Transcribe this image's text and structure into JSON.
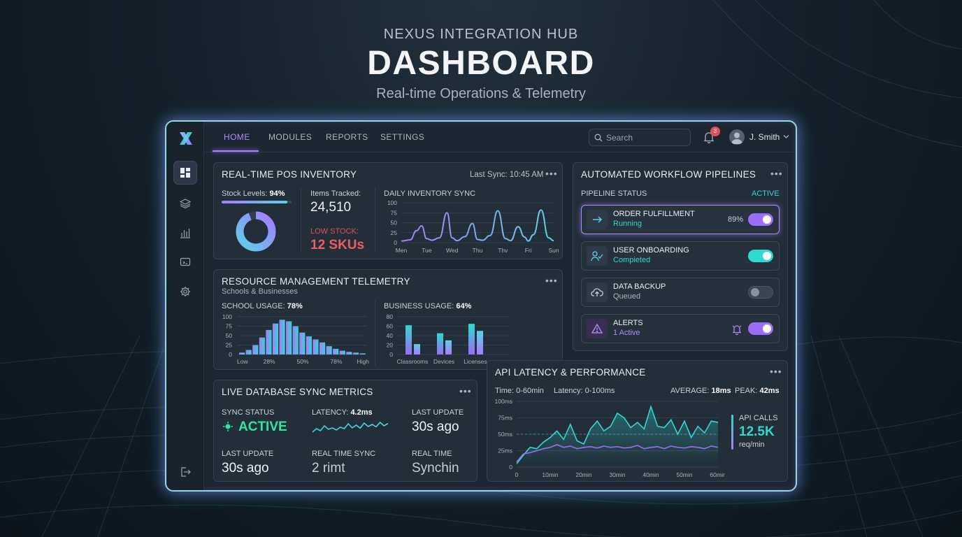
{
  "hero": {
    "super": "NEXUS INTEGRATION HUB",
    "title": "DASHBOARD",
    "subtitle": "Real-time Operations & Telemetry"
  },
  "nav": {
    "tabs": [
      "HOME",
      "MODULES",
      "REPORTS",
      "SETTINGS"
    ],
    "active_tab": "HOME",
    "search_placeholder": "Search",
    "notification_count": "3",
    "user_name": "J. Smith"
  },
  "sidebar": {
    "icons": [
      "dashboard-icon",
      "layers-icon",
      "bar-chart-icon",
      "monitor-icon",
      "gear-icon",
      "logout-icon"
    ]
  },
  "pos": {
    "title": "REAL-TIME POS INVENTORY",
    "last_sync": "Last Sync: 10:45 AM",
    "stock_label": "Stock Levels:",
    "stock_value": "94%",
    "stock_fraction": 0.94,
    "items_label": "Items Tracked:",
    "items_value": "24,510",
    "low_label": "LOW STOCK:",
    "low_value": "12 SKUs"
  },
  "pipelines": {
    "title": "AUTOMATED WORKFLOW PIPELINES",
    "status_label": "PIPELINE STATUS",
    "status_value": "ACTIVE",
    "items": [
      {
        "name": "ORDER FULFILLMENT",
        "status": "Running",
        "extra": "89%",
        "icon": "arrow-right-icon",
        "toggle": "on-purple",
        "status_color": "#2fd8d0"
      },
      {
        "name": "USER ONBOARDING",
        "status": "Compieted",
        "extra": "",
        "icon": "user-check-icon",
        "toggle": "on-cyan",
        "status_color": "#2fd8d0"
      },
      {
        "name": "DATA BACKUP",
        "status": "Queued",
        "extra": "",
        "icon": "cloud-upload-icon",
        "toggle": "off",
        "status_color": "#aab3bd"
      },
      {
        "name": "ALERTS",
        "status": "1 Active",
        "extra": "",
        "icon": "warning-icon",
        "toggle": "on-purple",
        "status_color": "#a98cff"
      }
    ]
  },
  "resource": {
    "title": "RESOURCE MANAGEMENT TELEMETRY",
    "subtitle": "Schools & Businesses",
    "school_label": "SCHOOL USAGE:",
    "school_value": "78%",
    "business_label": "BUSINESS USAGE:",
    "business_value": "64%"
  },
  "db": {
    "title": "LIVE DATABASE SYNC METRICS",
    "sync_status_label": "SYNC STATUS",
    "sync_status_value": "ACTIVE",
    "latency_label": "LATENCY:",
    "latency_value": "4.2ms",
    "last_update_label": "LAST UPDATE",
    "last_update_value": "30s ago",
    "last_update2_label": "LAST UPDATE",
    "last_update2_value": "30s ago",
    "rts_label": "REAL TIME SYNC",
    "rts_value": "2 rimt",
    "rt_label": "REAL TIME",
    "rt_value": "Synchin"
  },
  "api": {
    "title": "API LATENCY & PERFORMANCE",
    "time_range": "Time: 0-60min",
    "latency_range": "Latency: 0-100ms",
    "average_label": "AVERAGE:",
    "average_value": "18ms",
    "peak_label": "PEAK:",
    "peak_value": "42ms",
    "calls_label": "API CALLS",
    "calls_value": "12.5K",
    "calls_unit": "req/min"
  },
  "colors": {
    "accent_purple": "#a77bff",
    "accent_cyan": "#2fd8d0",
    "alert_red": "#e0505a"
  },
  "chart_data": [
    {
      "id": "daily-inventory-sync",
      "type": "line",
      "title": "DAILY INVENTORY SYNC",
      "categories": [
        "Men",
        "Tue",
        "Wed",
        "Thu",
        "Thv",
        "Fri",
        "Sun"
      ],
      "yticks": [
        "100",
        "75",
        "50",
        "25",
        "0"
      ],
      "ylim": [
        0,
        100
      ],
      "x": [
        0,
        0.35,
        0.6,
        0.8,
        1.0,
        1.2,
        1.5,
        1.8,
        2.0,
        2.2,
        2.5,
        2.8,
        3.0,
        3.2,
        3.5,
        3.8,
        4.1,
        4.3,
        4.6,
        4.85,
        5.0,
        5.2,
        5.5,
        5.8,
        6.0
      ],
      "values": [
        4,
        7,
        30,
        42,
        10,
        6,
        12,
        75,
        12,
        5,
        15,
        48,
        8,
        6,
        18,
        80,
        10,
        5,
        40,
        14,
        4,
        20,
        82,
        12,
        5
      ]
    },
    {
      "id": "school-usage",
      "type": "bar",
      "title": "SCHOOL USAGE: 78%",
      "categories": [
        "Low",
        "",
        "",
        "",
        "28%",
        "",
        "",
        "",
        "",
        "50%",
        "",
        "",
        "",
        "",
        "78%",
        "",
        "",
        "",
        "High"
      ],
      "xticks": [
        "Low",
        "28%",
        "50%",
        "78%",
        "High"
      ],
      "yticks": [
        "100",
        "75",
        "50",
        "25",
        "0"
      ],
      "ylim": [
        0,
        100
      ],
      "values": [
        5,
        12,
        25,
        45,
        65,
        82,
        92,
        88,
        75,
        58,
        48,
        40,
        32,
        22,
        15,
        10,
        7,
        5,
        3
      ]
    },
    {
      "id": "business-usage",
      "type": "bar",
      "title": "BUSINESS USAGE: 64%",
      "categories": [
        "Classrooms",
        "Devices",
        "Licenses"
      ],
      "yticks": [
        "80",
        "60",
        "40",
        "20",
        "0"
      ],
      "ylim": [
        0,
        80
      ],
      "series": [
        {
          "values": [
            62,
            45,
            65
          ]
        },
        {
          "values": [
            22,
            30,
            50
          ]
        }
      ]
    },
    {
      "id": "db-latency-spark",
      "type": "line",
      "title": "LATENCY: 4.2ms",
      "values": [
        10,
        35,
        20,
        55,
        30,
        40,
        25,
        45,
        35,
        70,
        40,
        60,
        38,
        75,
        50,
        65,
        48,
        80,
        55,
        72
      ]
    },
    {
      "id": "api-latency",
      "type": "line",
      "title": "API LATENCY & PERFORMANCE",
      "xticks": [
        "0",
        "10min",
        "20min",
        "30min",
        "40min",
        "50min",
        "60min"
      ],
      "yticks": [
        "100ms",
        "75ms",
        "50ms",
        "25ms",
        "0"
      ],
      "ylim": [
        0,
        100
      ],
      "x": [
        0,
        2,
        4,
        6,
        8,
        10,
        12,
        14,
        16,
        18,
        20,
        22,
        24,
        26,
        28,
        30,
        32,
        34,
        36,
        38,
        40,
        42,
        44,
        46,
        48,
        50,
        52,
        54,
        56,
        58,
        60
      ],
      "series": [
        {
          "values": [
            5,
            18,
            30,
            28,
            38,
            45,
            55,
            42,
            65,
            40,
            35,
            58,
            70,
            55,
            62,
            82,
            75,
            60,
            68,
            58,
            92,
            62,
            60,
            72,
            50,
            70,
            45,
            62,
            52,
            70,
            68
          ]
        },
        {
          "values": [
            8,
            20,
            22,
            25,
            28,
            30,
            34,
            30,
            32,
            28,
            30,
            31,
            29,
            32,
            30,
            31,
            29,
            30,
            33,
            28,
            30,
            31,
            28,
            32,
            30,
            29,
            31,
            30,
            28,
            32,
            30
          ]
        }
      ],
      "reference_line": 50
    }
  ]
}
